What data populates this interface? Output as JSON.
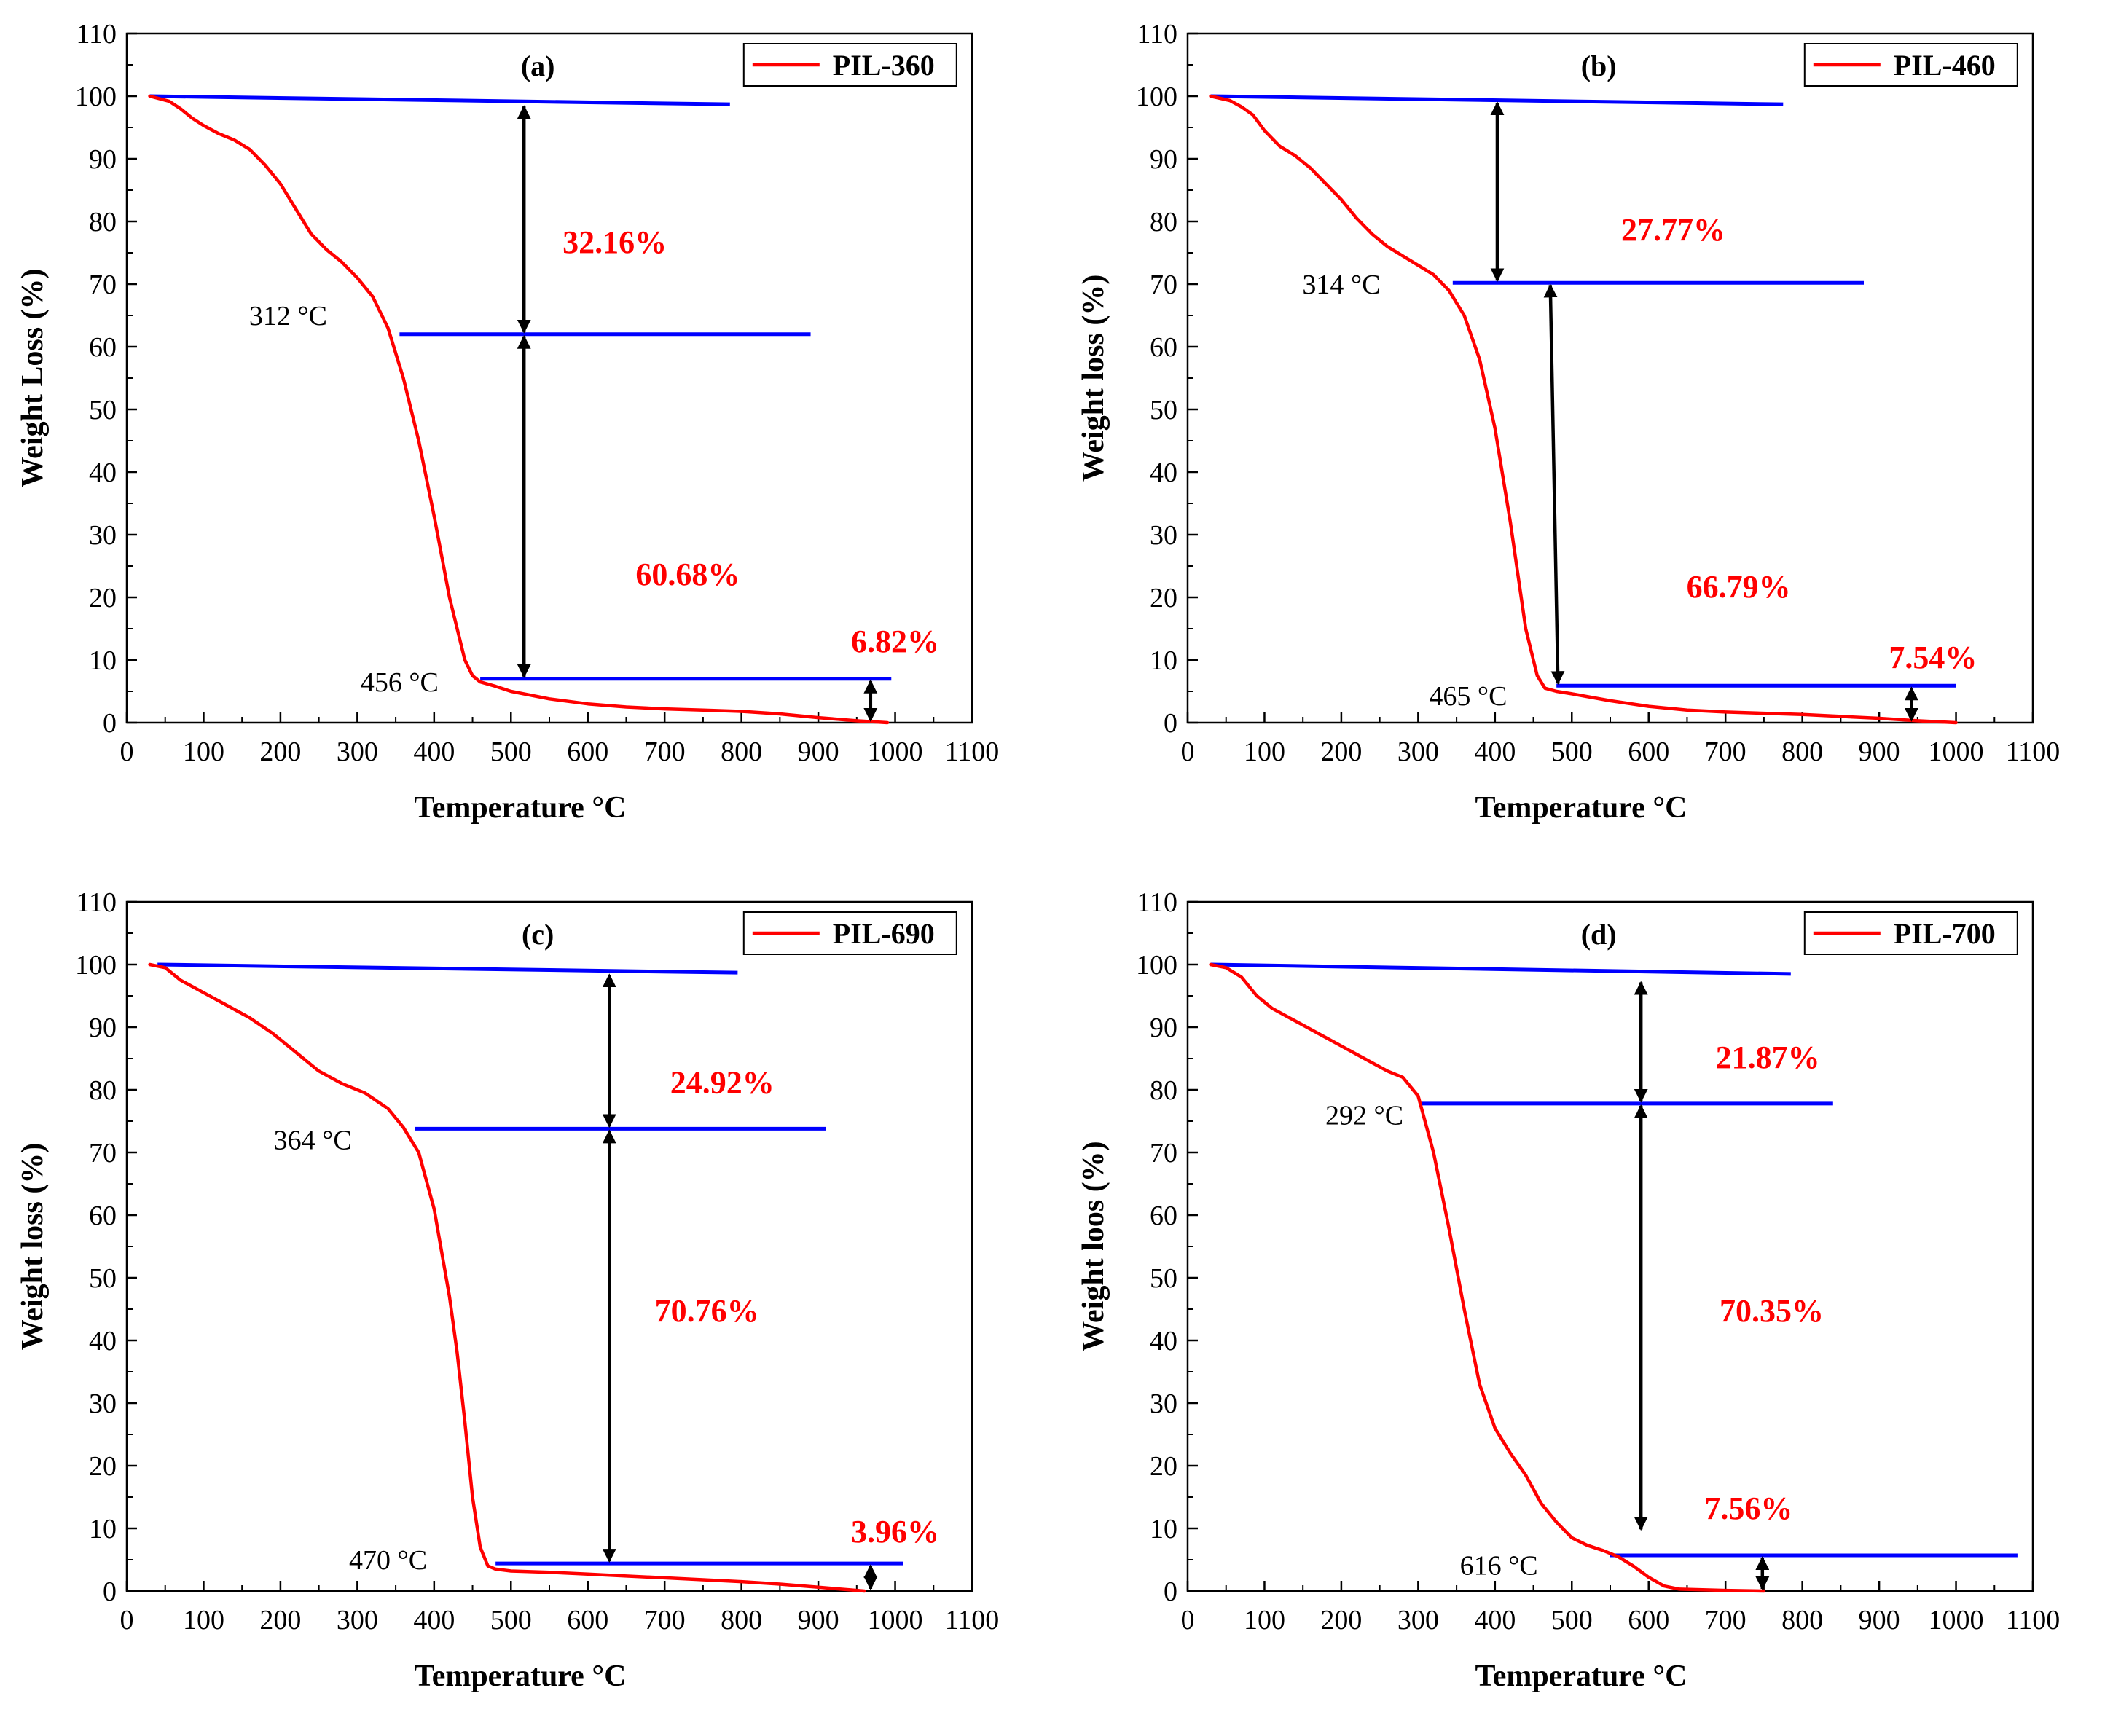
{
  "colors": {
    "curve": "#ff0000",
    "levels": "#0000ff",
    "arrows": "#000000",
    "percent_labels": "#ff0000",
    "axes": "#000000"
  },
  "chart_data": [
    {
      "type": "line",
      "panel_label": "(a)",
      "legend": "PIL-360",
      "xlabel": "Temperature °C",
      "ylabel": "Weight Loss (%)",
      "xlim": [
        0,
        1100
      ],
      "ylim": [
        0,
        110
      ],
      "xticks": [
        0,
        100,
        200,
        300,
        400,
        500,
        600,
        700,
        800,
        900,
        1000,
        1100
      ],
      "yticks": [
        0,
        10,
        20,
        30,
        40,
        50,
        60,
        70,
        80,
        90,
        100,
        110
      ],
      "series": [
        {
          "name": "PIL-360",
          "x": [
            30,
            55,
            70,
            85,
            100,
            120,
            140,
            160,
            180,
            200,
            220,
            240,
            260,
            280,
            300,
            320,
            340,
            360,
            380,
            400,
            420,
            440,
            450,
            460,
            480,
            500,
            550,
            600,
            650,
            700,
            750,
            800,
            850,
            900,
            950,
            990
          ],
          "y": [
            100,
            99.2,
            98,
            96.5,
            95.3,
            94,
            93,
            91.5,
            89,
            86,
            82,
            78,
            75.5,
            73.5,
            71,
            68,
            63,
            55,
            45,
            33,
            20,
            10,
            7.5,
            6.5,
            5.8,
            5,
            3.8,
            3,
            2.5,
            2.2,
            2,
            1.8,
            1.4,
            0.8,
            0.3,
            0
          ]
        }
      ],
      "level_lines": [
        {
          "x1": 30,
          "x2": 785,
          "y1": 100,
          "y2": 98.7
        },
        {
          "x1": 355,
          "x2": 890,
          "y": 62
        },
        {
          "x1": 460,
          "x2": 995,
          "y": 7
        }
      ],
      "arrows": [
        {
          "x": 517,
          "y1": 98.7,
          "y2": 62
        },
        {
          "x": 517,
          "y1": 62,
          "y2": 7
        },
        {
          "x": 968,
          "y1": 7,
          "y2": 0
        }
      ],
      "percent_labels": [
        {
          "text": "32.16%",
          "x": 635,
          "y": 75
        },
        {
          "text": "60.68%",
          "x": 730,
          "y": 22
        },
        {
          "text": "6.82%",
          "x": 1000,
          "y": 11.3
        }
      ],
      "temp_labels": [
        {
          "text": "312 °C",
          "x": 210,
          "y": 63.5
        },
        {
          "text": "456 °C",
          "x": 355,
          "y": 5
        }
      ]
    },
    {
      "type": "line",
      "panel_label": "(b)",
      "legend": "PIL-460",
      "xlabel": "Temperature °C",
      "ylabel": "Weight loss (%)",
      "xlim": [
        0,
        1100
      ],
      "ylim": [
        0,
        110
      ],
      "xticks": [
        0,
        100,
        200,
        300,
        400,
        500,
        600,
        700,
        800,
        900,
        1000,
        1100
      ],
      "yticks": [
        0,
        10,
        20,
        30,
        40,
        50,
        60,
        70,
        80,
        90,
        100,
        110
      ],
      "series": [
        {
          "name": "PIL-460",
          "x": [
            30,
            55,
            70,
            85,
            100,
            120,
            140,
            160,
            180,
            200,
            220,
            240,
            260,
            280,
            300,
            320,
            340,
            360,
            380,
            400,
            420,
            440,
            455,
            465,
            480,
            500,
            550,
            600,
            650,
            700,
            750,
            800,
            850,
            900,
            950,
            1000
          ],
          "y": [
            100,
            99.3,
            98.3,
            97,
            94.5,
            92,
            90.5,
            88.5,
            86,
            83.5,
            80.5,
            78,
            76,
            74.5,
            73,
            71.5,
            69,
            65,
            58,
            47,
            32,
            15,
            7.5,
            5.5,
            5,
            4.6,
            3.5,
            2.6,
            2,
            1.7,
            1.5,
            1.3,
            1,
            0.7,
            0.3,
            0
          ]
        }
      ],
      "level_lines": [
        {
          "x1": 30,
          "x2": 775,
          "y1": 100,
          "y2": 98.7
        },
        {
          "x1": 345,
          "x2": 880,
          "y": 70.2
        },
        {
          "x1": 480,
          "x2": 1000,
          "y": 5.9
        }
      ],
      "arrows": [
        {
          "x": 403,
          "y1": 99.3,
          "y2": 70.2
        },
        {
          "x1": 472,
          "x2": 482,
          "y1": 70.2,
          "y2": 5.9
        },
        {
          "x": 942,
          "y1": 5.9,
          "y2": 0
        }
      ],
      "percent_labels": [
        {
          "text": "27.77%",
          "x": 632,
          "y": 77
        },
        {
          "text": "66.79%",
          "x": 717,
          "y": 20
        },
        {
          "text": "7.54%",
          "x": 970,
          "y": 8.7
        }
      ],
      "temp_labels": [
        {
          "text": "314 °C",
          "x": 200,
          "y": 68.5
        },
        {
          "text": "465 °C",
          "x": 365,
          "y": 2.8
        }
      ]
    },
    {
      "type": "line",
      "panel_label": "(c)",
      "legend": "PIL-690",
      "xlabel": "Temperature °C",
      "ylabel": "Weight loss (%)",
      "xlim": [
        0,
        1100
      ],
      "ylim": [
        0,
        110
      ],
      "xticks": [
        0,
        100,
        200,
        300,
        400,
        500,
        600,
        700,
        800,
        900,
        1000,
        1100
      ],
      "yticks": [
        0,
        10,
        20,
        30,
        40,
        50,
        60,
        70,
        80,
        90,
        100,
        110
      ],
      "series": [
        {
          "name": "PIL-690",
          "x": [
            30,
            50,
            70,
            100,
            130,
            160,
            190,
            220,
            250,
            280,
            310,
            340,
            360,
            380,
            400,
            420,
            430,
            440,
            450,
            460,
            470,
            480,
            500,
            550,
            600,
            650,
            700,
            750,
            800,
            850,
            900,
            940,
            960
          ],
          "y": [
            100,
            99.5,
            97.5,
            95.5,
            93.5,
            91.5,
            89,
            86,
            83,
            81,
            79.5,
            77,
            74,
            70,
            61,
            47,
            38,
            27,
            15,
            7,
            4,
            3.5,
            3.2,
            3,
            2.7,
            2.4,
            2.1,
            1.8,
            1.5,
            1.1,
            0.6,
            0.2,
            0
          ]
        }
      ],
      "level_lines": [
        {
          "x1": 40,
          "x2": 795,
          "y1": 100,
          "y2": 98.7
        },
        {
          "x1": 375,
          "x2": 910,
          "y": 73.8
        },
        {
          "x1": 480,
          "x2": 1010,
          "y": 4.4
        }
      ],
      "arrows": [
        {
          "x": 628,
          "y1": 98.7,
          "y2": 73.8
        },
        {
          "x": 628,
          "y1": 73.8,
          "y2": 4.4
        },
        {
          "x": 968,
          "y1": 4.4,
          "y2": 0
        }
      ],
      "percent_labels": [
        {
          "text": "24.92%",
          "x": 775,
          "y": 79.5
        },
        {
          "text": "70.76%",
          "x": 755,
          "y": 43
        },
        {
          "text": "3.96%",
          "x": 1000,
          "y": 7.8
        }
      ],
      "temp_labels": [
        {
          "text": "364 °C",
          "x": 242,
          "y": 70.5
        },
        {
          "text": "470 °C",
          "x": 340,
          "y": 3.5
        }
      ]
    },
    {
      "type": "line",
      "panel_label": "(d)",
      "legend": "PIL-700",
      "xlabel": "Temperature °C",
      "ylabel": "Weight loos (%)",
      "xlim": [
        0,
        1100
      ],
      "ylim": [
        0,
        110
      ],
      "xticks": [
        0,
        100,
        200,
        300,
        400,
        500,
        600,
        700,
        800,
        900,
        1000,
        1100
      ],
      "yticks": [
        0,
        10,
        20,
        30,
        40,
        50,
        60,
        70,
        80,
        90,
        100,
        110
      ],
      "series": [
        {
          "name": "PIL-700",
          "x": [
            30,
            50,
            70,
            90,
            110,
            140,
            170,
            200,
            230,
            260,
            280,
            300,
            320,
            340,
            360,
            380,
            400,
            420,
            440,
            460,
            480,
            500,
            520,
            540,
            560,
            580,
            600,
            620,
            640,
            700,
            750
          ],
          "y": [
            100,
            99.5,
            98,
            95,
            93,
            91,
            89,
            87,
            85,
            83,
            82,
            79,
            70,
            58,
            45,
            33,
            26,
            22,
            18.5,
            14,
            11,
            8.5,
            7.3,
            6.5,
            5.5,
            4,
            2.2,
            0.8,
            0.3,
            0.1,
            0
          ]
        }
      ],
      "level_lines": [
        {
          "x1": 30,
          "x2": 785,
          "y1": 100,
          "y2": 98.5
        },
        {
          "x1": 305,
          "x2": 840,
          "y": 77.8
        },
        {
          "x1": 550,
          "x2": 1080,
          "y": 5.7
        }
      ],
      "arrows": [
        {
          "x": 590,
          "y1": 97.5,
          "y2": 77.8
        },
        {
          "x": 590,
          "y1": 77.8,
          "y2": 9.5
        },
        {
          "x": 748,
          "y1": 5.7,
          "y2": 0
        }
      ],
      "percent_labels": [
        {
          "text": "21.87%",
          "x": 755,
          "y": 83.5
        },
        {
          "text": "70.35%",
          "x": 760,
          "y": 43
        },
        {
          "text": "7.56%",
          "x": 730,
          "y": 11.5
        }
      ],
      "temp_labels": [
        {
          "text": "292 °C",
          "x": 230,
          "y": 74.5
        },
        {
          "text": "616 °C",
          "x": 405,
          "y": 2.6
        }
      ]
    }
  ]
}
